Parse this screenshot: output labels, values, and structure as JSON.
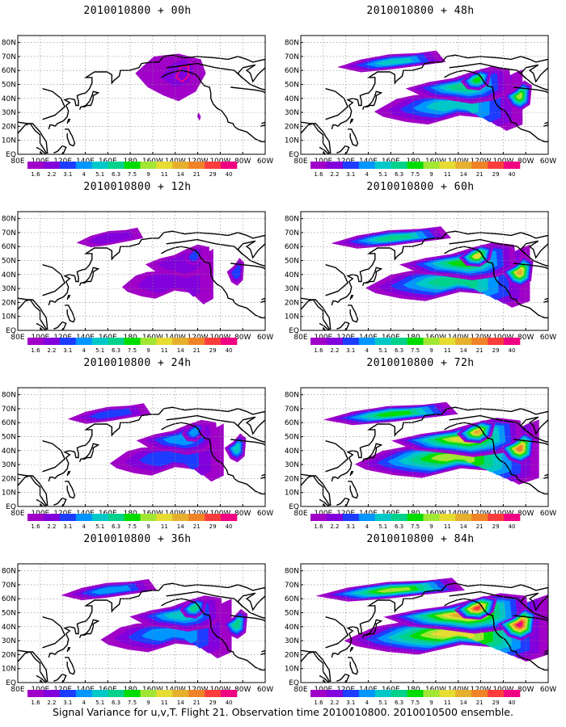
{
  "figure": {
    "caption": "Signal Variance for u,v,T. Flight 21. Observation time 2010010800. 2010010500 ensemble."
  },
  "colorbar": {
    "levels": [
      "1.6",
      "2.2",
      "3.1",
      "4",
      "5.1",
      "6.3",
      "7.5",
      "9",
      "11",
      "14",
      "21",
      "29",
      "40"
    ],
    "colors": [
      "#a000c8",
      "#8200dc",
      "#1e3cff",
      "#0096ff",
      "#00c8c8",
      "#00d28c",
      "#00dc00",
      "#a0e632",
      "#e6dc32",
      "#e6af2d",
      "#f08228",
      "#fa3c3c",
      "#f00082"
    ]
  },
  "axes": {
    "x_ticks": [
      "80E",
      "100E",
      "120E",
      "140E",
      "160E",
      "180",
      "160W",
      "140W",
      "120W",
      "100W",
      "80W",
      "60W"
    ],
    "y_ticks": [
      "EQ",
      "10N",
      "20N",
      "30N",
      "40N",
      "50N",
      "60N",
      "70N",
      "80N"
    ]
  },
  "chart_data": [
    {
      "type": "heatmap",
      "title": "2010010800 + 00h",
      "intensity": 0.0
    },
    {
      "type": "heatmap",
      "title": "2010010800 + 48h",
      "intensity": 0.58
    },
    {
      "type": "heatmap",
      "title": "2010010800 + 12h",
      "intensity": 0.15
    },
    {
      "type": "heatmap",
      "title": "2010010800 + 60h",
      "intensity": 0.7
    },
    {
      "type": "heatmap",
      "title": "2010010800 + 24h",
      "intensity": 0.32
    },
    {
      "type": "heatmap",
      "title": "2010010800 + 72h",
      "intensity": 0.85
    },
    {
      "type": "heatmap",
      "title": "2010010800 + 36h",
      "intensity": 0.45
    },
    {
      "type": "heatmap",
      "title": "2010010800 + 84h",
      "intensity": 1.0
    }
  ]
}
